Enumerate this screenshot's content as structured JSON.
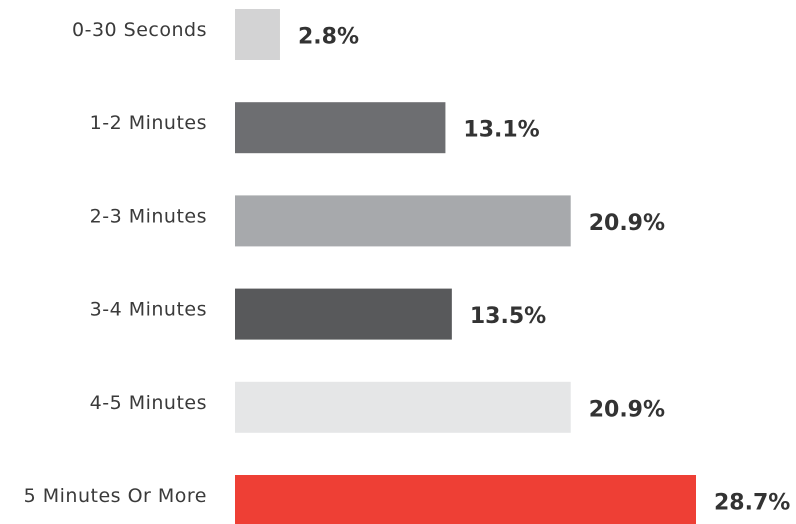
{
  "chart_data": {
    "type": "bar",
    "orientation": "horizontal",
    "categories": [
      "0-30 Seconds",
      "1-2 Minutes",
      "2-3 Minutes",
      "3-4 Minutes",
      "4-5 Minutes",
      "5 Minutes Or More"
    ],
    "values": [
      2.8,
      13.1,
      20.9,
      13.5,
      20.9,
      28.7
    ],
    "value_labels": [
      "2.8%",
      "13.1%",
      "20.9%",
      "13.5%",
      "20.9%",
      "28.7%"
    ],
    "unit": "%",
    "colors": [
      "#d3d3d4",
      "#6d6e71",
      "#a7a9ac",
      "#58595b",
      "#e5e6e7",
      "#ee3f35"
    ],
    "title": "",
    "xlabel": "",
    "ylabel": "",
    "grid": false,
    "legend": "none"
  }
}
